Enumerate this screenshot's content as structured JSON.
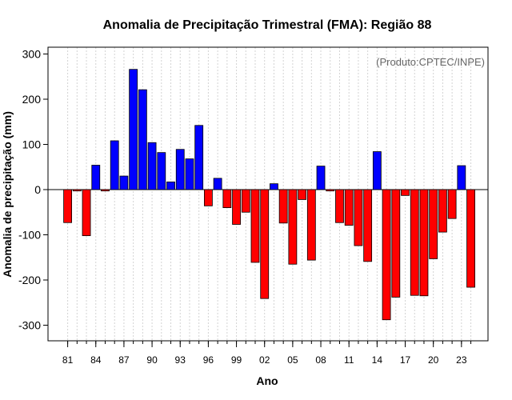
{
  "chart_data": {
    "type": "bar",
    "title": "Anomalia de Precipitação Trimestral (FMA): Região 88",
    "xlabel": "Ano",
    "ylabel": "Anomalia de precipitação (mm)",
    "annotation": "(Produto:CPTEC/INPE)",
    "ylim": [
      -340,
      320
    ],
    "yticks": [
      -300,
      -200,
      -100,
      0,
      100,
      200,
      300
    ],
    "grid": true,
    "positive_color": "#0000ff",
    "negative_color": "#ff0000",
    "xtick_labels": [
      {
        "year": 1981,
        "label": "81"
      },
      {
        "year": 1984,
        "label": "84"
      },
      {
        "year": 1987,
        "label": "87"
      },
      {
        "year": 1990,
        "label": "90"
      },
      {
        "year": 1993,
        "label": "93"
      },
      {
        "year": 1996,
        "label": "96"
      },
      {
        "year": 1999,
        "label": "99"
      },
      {
        "year": 2002,
        "label": "02"
      },
      {
        "year": 2005,
        "label": "05"
      },
      {
        "year": 2008,
        "label": "08"
      },
      {
        "year": 2011,
        "label": "11"
      },
      {
        "year": 2014,
        "label": "14"
      },
      {
        "year": 2017,
        "label": "17"
      },
      {
        "year": 2020,
        "label": "20"
      },
      {
        "year": 2023,
        "label": "23"
      }
    ],
    "years": [
      1981,
      1982,
      1983,
      1984,
      1985,
      1986,
      1987,
      1988,
      1989,
      1990,
      1991,
      1992,
      1993,
      1994,
      1995,
      1996,
      1997,
      1998,
      1999,
      2000,
      2001,
      2002,
      2003,
      2004,
      2005,
      2006,
      2007,
      2008,
      2009,
      2010,
      2011,
      2012,
      2013,
      2014,
      2015,
      2016,
      2017,
      2018,
      2019,
      2020,
      2021,
      2022,
      2023,
      2024
    ],
    "values": [
      -73,
      -3,
      -102,
      54,
      -3,
      108,
      30,
      266,
      221,
      104,
      82,
      17,
      89,
      68,
      142,
      -36,
      25,
      -40,
      -77,
      -50,
      -161,
      -241,
      13,
      -74,
      -165,
      -22,
      -156,
      52,
      -3,
      -73,
      -79,
      -124,
      -159,
      84,
      -288,
      -238,
      -13,
      -234,
      -235,
      -153,
      -94,
      -64,
      53,
      -216
    ]
  }
}
